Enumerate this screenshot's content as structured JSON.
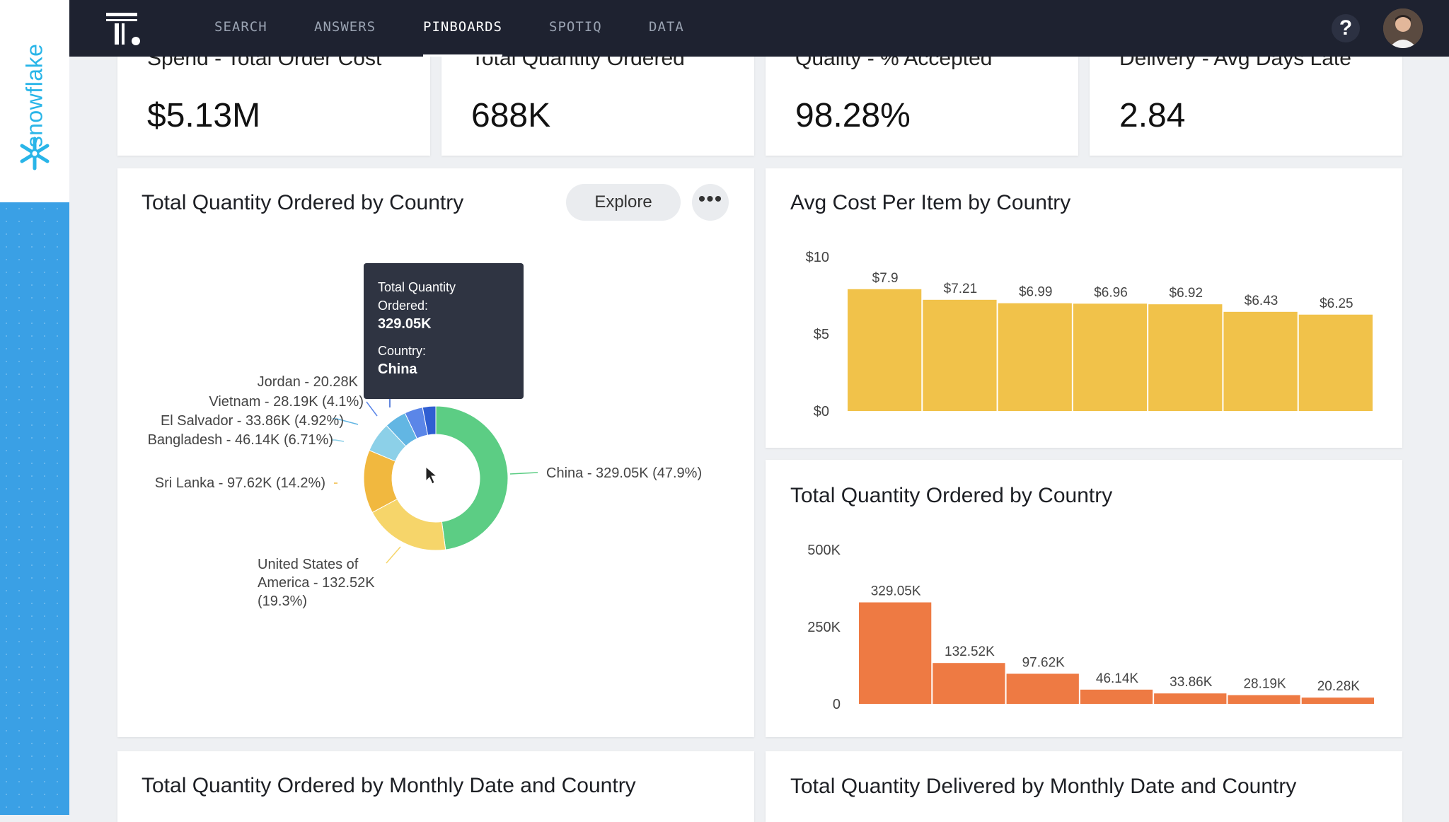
{
  "sidebar": {
    "brand": "snowflake"
  },
  "nav": {
    "items": [
      {
        "label": "SEARCH",
        "active": false
      },
      {
        "label": "ANSWERS",
        "active": false
      },
      {
        "label": "PINBOARDS",
        "active": true
      },
      {
        "label": "SPOTIQ",
        "active": false
      },
      {
        "label": "DATA",
        "active": false
      }
    ],
    "help_label": "?"
  },
  "kpis": [
    {
      "title": "Spend - Total Order Cost",
      "value": "$5.13M"
    },
    {
      "title": "Total Quantity Ordered",
      "value": "688K"
    },
    {
      "title": "Quality - % Accepted",
      "value": "98.28%"
    },
    {
      "title": "Delivery - Avg Days Late",
      "value": "2.84"
    }
  ],
  "donut_card": {
    "title": "Total Quantity Ordered by Country",
    "explore_label": "Explore",
    "more_label": "•••",
    "tooltip": {
      "measure_label": "Total Quantity",
      "measure_label2": "Ordered:",
      "measure_value": "329.05K",
      "dim_label": "Country:",
      "dim_value": "China"
    },
    "slice_labels": [
      "China - 329.05K (47.9%)",
      "United States of",
      "America - 132.52K",
      "(19.3%)",
      "Sri Lanka - 97.62K (14.2%)",
      "Bangladesh - 46.14K (6.71%)",
      "El Salvador - 33.86K (4.92%)",
      "Vietnam - 28.19K (4.1%)",
      "Jordan - 20.28K"
    ]
  },
  "cost_card": {
    "title": "Avg Cost Per Item by Country"
  },
  "qty_card": {
    "title": "Total Quantity Ordered by Country"
  },
  "bottom_left": {
    "title": "Total Quantity Ordered by Monthly Date and Country"
  },
  "bottom_right": {
    "title": "Total Quantity Delivered by Monthly Date and Country"
  },
  "chart_data": [
    {
      "type": "pie",
      "title": "Total Quantity Ordered by Country",
      "categories": [
        "China",
        "United States of America",
        "Sri Lanka",
        "Bangladesh",
        "El Salvador",
        "Vietnam",
        "Jordan"
      ],
      "values": [
        329.05,
        132.52,
        97.62,
        46.14,
        33.86,
        28.19,
        20.28
      ],
      "unit": "K",
      "colors": [
        "#5ccd84",
        "#f6d56a",
        "#f1b83f",
        "#8cd0e8",
        "#62b6e3",
        "#5b86e8",
        "#2f5ed2"
      ]
    },
    {
      "type": "bar",
      "title": "Avg Cost Per Item by Country",
      "values": [
        7.9,
        7.21,
        6.99,
        6.96,
        6.92,
        6.43,
        6.25
      ],
      "value_labels": [
        "$7.9",
        "$7.21",
        "$6.99",
        "$6.96",
        "$6.92",
        "$6.43",
        "$6.25"
      ],
      "ylim": [
        0,
        10
      ],
      "yticks": [
        "$10",
        "$5",
        "$0"
      ],
      "color": "#f1c24a"
    },
    {
      "type": "bar",
      "title": "Total Quantity Ordered by Country",
      "values": [
        329.05,
        132.52,
        97.62,
        46.14,
        33.86,
        28.19,
        20.28
      ],
      "value_labels": [
        "329.05K",
        "132.52K",
        "97.62K",
        "46.14K",
        "33.86K",
        "28.19K",
        "20.28K"
      ],
      "ylim": [
        0,
        500
      ],
      "yticks": [
        "500K",
        "250K",
        "0"
      ],
      "color": "#ee7a43"
    }
  ]
}
